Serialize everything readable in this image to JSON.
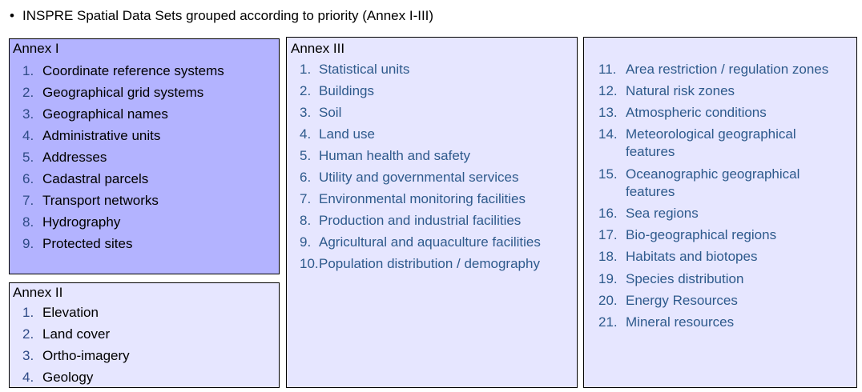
{
  "heading": {
    "bullet": "•",
    "text": "INSPRE Spatial Data Sets grouped according to priority (Annex I-III)"
  },
  "annex1": {
    "title": "Annex I",
    "items": [
      {
        "num": "1.",
        "text": "Coordinate reference systems"
      },
      {
        "num": "2.",
        "text": "Geographical grid systems"
      },
      {
        "num": "3.",
        "text": "Geographical names"
      },
      {
        "num": "4.",
        "text": "Administrative units"
      },
      {
        "num": "5.",
        "text": "Addresses"
      },
      {
        "num": "6.",
        "text": "Cadastral parcels"
      },
      {
        "num": "7.",
        "text": "Transport networks"
      },
      {
        "num": "8.",
        "text": "Hydrography"
      },
      {
        "num": "9.",
        "text": "Protected sites"
      }
    ]
  },
  "annex2": {
    "title": "Annex II",
    "items": [
      {
        "num": "1.",
        "text": "Elevation"
      },
      {
        "num": "2.",
        "text": "Land cover"
      },
      {
        "num": "3.",
        "text": "Ortho-imagery"
      },
      {
        "num": "4.",
        "text": "Geology"
      }
    ]
  },
  "annex3": {
    "title": "Annex III",
    "items": [
      {
        "num": "1.",
        "text": "Statistical units"
      },
      {
        "num": "2.",
        "text": "Buildings"
      },
      {
        "num": "3.",
        "text": "Soil"
      },
      {
        "num": "4.",
        "text": "Land use"
      },
      {
        "num": "5.",
        "text": "Human health and safety"
      },
      {
        "num": "6.",
        "text": "Utility and governmental services"
      },
      {
        "num": "7.",
        "text": "Environmental monitoring facilities"
      },
      {
        "num": "8.",
        "text": "Production and industrial facilities"
      },
      {
        "num": "9.",
        "text": "Agricultural and aquaculture facilities"
      },
      {
        "num": "10.",
        "text": "Population distribution / demography"
      }
    ],
    "items_continued": [
      {
        "num": "11.",
        "text": "Area restriction / regulation zones"
      },
      {
        "num": "12.",
        "text": "Natural risk zones"
      },
      {
        "num": "13.",
        "text": "Atmospheric conditions"
      },
      {
        "num": "14.",
        "text": "Meteorological geographical",
        "text2": "features"
      },
      {
        "num": "15.",
        "text": "Oceanographic geographical",
        "text2": "features"
      },
      {
        "num": "16.",
        "text": "Sea regions"
      },
      {
        "num": "17.",
        "text": "Bio-geographical regions"
      },
      {
        "num": "18.",
        "text": "Habitats and biotopes"
      },
      {
        "num": "19.",
        "text": "Species distribution"
      },
      {
        "num": "20.",
        "text": "Energy Resources"
      },
      {
        "num": "21.",
        "text": "Mineral resources"
      }
    ]
  },
  "colors": {
    "annex1_fill": "#b3b3ff",
    "annex_fill": "#e6e6ff",
    "number_color": "#2e4a86",
    "blue_text": "#2e5a8c",
    "border": "#000000"
  }
}
